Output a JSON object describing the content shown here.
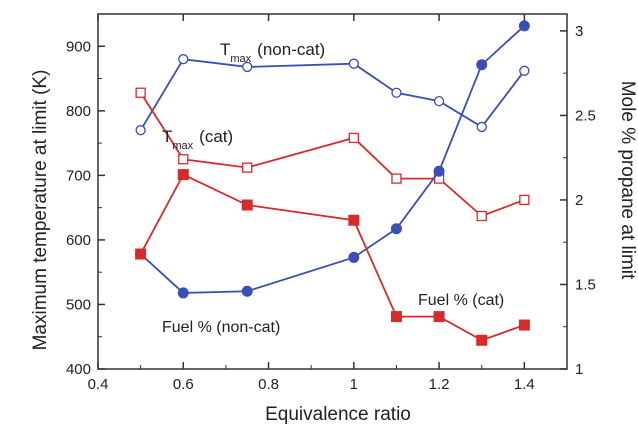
{
  "chart_data": {
    "type": "line",
    "xlabel": "Equivalence ratio",
    "ylabel_left": "Maximum temperature at limit (K)",
    "ylabel_right": "Mole % propane at limit",
    "xlim": [
      0.4,
      1.5
    ],
    "ylim_left": [
      400,
      950
    ],
    "ylim_right": [
      1,
      3.1
    ],
    "x_ticks": [
      "0.4",
      "0.6",
      "0.8",
      "1",
      "1.2",
      "1.4"
    ],
    "y_left_ticks": [
      "400",
      "500",
      "600",
      "700",
      "800",
      "900"
    ],
    "y_right_ticks": [
      "1",
      "1.5",
      "2",
      "2.5",
      "3"
    ],
    "colors": {
      "non_cat": "#3a4fb5",
      "cat": "#d62b2b"
    },
    "annotations": {
      "tmax_noncat": {
        "main": "T",
        "sub": "max",
        "rest": "(non-cat)"
      },
      "tmax_cat": {
        "main": "T",
        "sub": "max",
        "rest": "(cat)"
      },
      "fuel_noncat": "Fuel % (non-cat)",
      "fuel_cat": "Fuel % (cat)"
    },
    "series": [
      {
        "axis": "left",
        "color": "non_cat",
        "marker": "open-circle",
        "x": [
          0.5,
          0.6,
          0.75,
          1.0,
          1.1,
          1.2,
          1.3,
          1.4
        ],
        "y": [
          770,
          880,
          868,
          873,
          828,
          815,
          775,
          862
        ]
      },
      {
        "axis": "left",
        "color": "cat",
        "marker": "open-square",
        "x": [
          0.5,
          0.6,
          0.75,
          1.0,
          1.1,
          1.2,
          1.3,
          1.4
        ],
        "y": [
          828,
          725,
          712,
          758,
          695,
          695,
          637,
          662
        ]
      },
      {
        "axis": "right",
        "color": "non_cat",
        "marker": "filled-circle",
        "x": [
          0.5,
          0.6,
          0.75,
          1.0,
          1.1,
          1.2,
          1.3,
          1.4
        ],
        "y": [
          1.68,
          1.45,
          1.46,
          1.66,
          1.83,
          2.17,
          2.8,
          3.03
        ]
      },
      {
        "axis": "right",
        "color": "cat",
        "marker": "filled-square",
        "x": [
          0.5,
          0.6,
          0.75,
          1.0,
          1.1,
          1.2,
          1.3,
          1.4
        ],
        "y": [
          1.68,
          2.15,
          1.97,
          1.88,
          1.31,
          1.31,
          1.17,
          1.26
        ]
      }
    ]
  }
}
